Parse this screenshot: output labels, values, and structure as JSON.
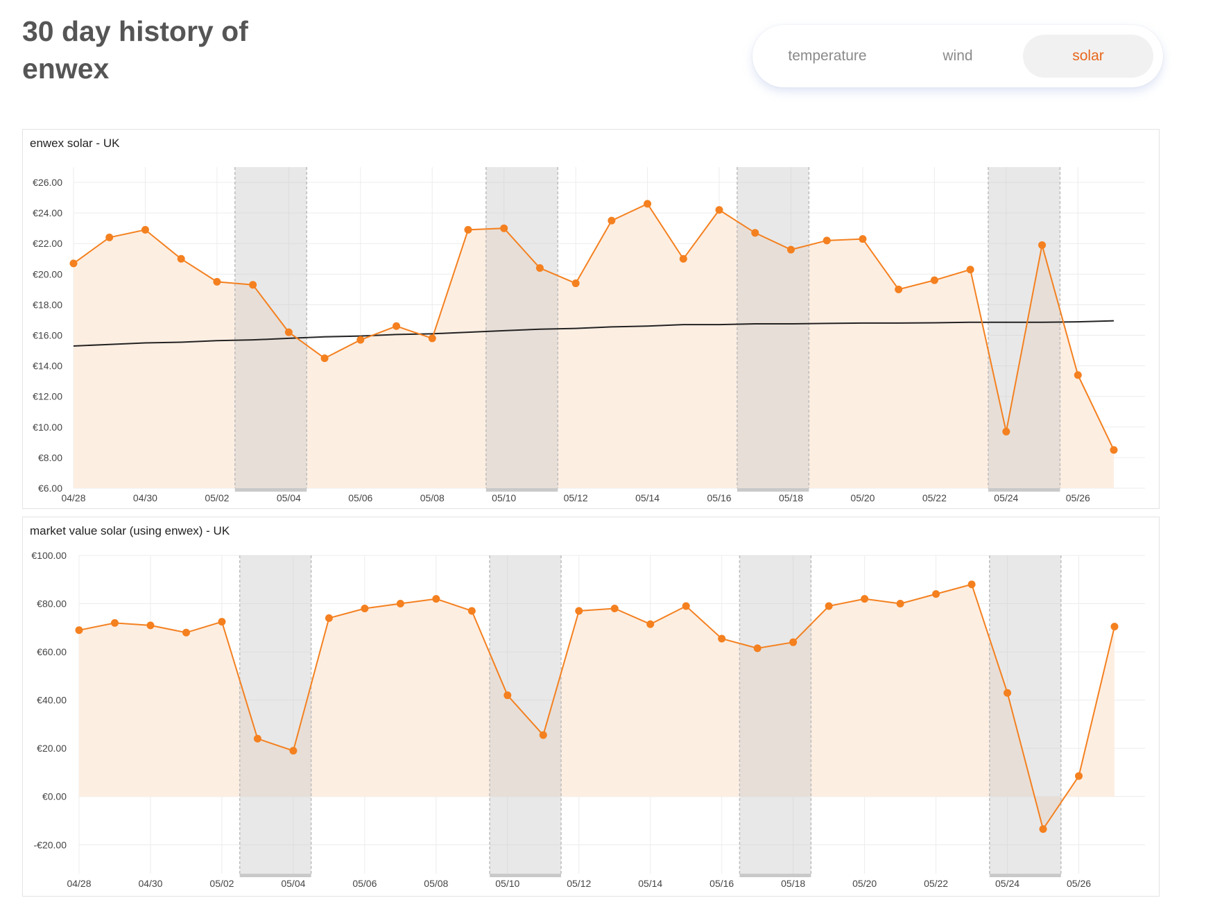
{
  "page": {
    "title": "30 day history of enwex"
  },
  "tabs": [
    {
      "label": "temperature",
      "active": false
    },
    {
      "label": "wind",
      "active": false
    },
    {
      "label": "solar",
      "active": true
    }
  ],
  "colors": {
    "accent": "#f4801f",
    "fill": "#fdeee2",
    "trend": "#222222",
    "shade": "#e6e6e6",
    "active_tab": "#e8671d"
  },
  "chart_data": [
    {
      "type": "line",
      "title": "enwex solar - UK",
      "x": [
        "04/28",
        "04/29",
        "04/30",
        "05/01",
        "05/02",
        "05/03",
        "05/04",
        "05/05",
        "05/06",
        "05/07",
        "05/08",
        "05/09",
        "05/10",
        "05/11",
        "05/12",
        "05/13",
        "05/14",
        "05/15",
        "05/16",
        "05/17",
        "05/18",
        "05/19",
        "05/20",
        "05/21",
        "05/22",
        "05/23",
        "05/24",
        "05/25",
        "05/26",
        "05/27"
      ],
      "x_tick_labels": [
        "04/28",
        "04/30",
        "05/02",
        "05/04",
        "05/06",
        "05/08",
        "05/10",
        "05/12",
        "05/14",
        "05/16",
        "05/18",
        "05/20",
        "05/22",
        "05/24",
        "05/26"
      ],
      "y_tick_labels": [
        "€6.00",
        "€8.00",
        "€10.00",
        "€12.00",
        "€14.00",
        "€16.00",
        "€18.00",
        "€20.00",
        "€22.00",
        "€24.00",
        "€26.00"
      ],
      "y_ticks": [
        6,
        8,
        10,
        12,
        14,
        16,
        18,
        20,
        22,
        24,
        26
      ],
      "ylim": [
        6,
        27
      ],
      "series": [
        {
          "name": "enwex solar",
          "values": [
            20.7,
            22.4,
            22.9,
            21.0,
            19.5,
            19.3,
            16.2,
            14.5,
            15.7,
            16.6,
            15.8,
            22.9,
            23.0,
            20.4,
            19.4,
            23.5,
            24.6,
            21.0,
            24.2,
            22.7,
            21.6,
            22.2,
            22.3,
            19.0,
            19.6,
            20.3,
            9.7,
            21.9,
            13.4,
            8.5
          ]
        },
        {
          "name": "trend",
          "values": [
            15.3,
            15.4,
            15.5,
            15.55,
            15.65,
            15.7,
            15.8,
            15.9,
            15.95,
            16.05,
            16.1,
            16.2,
            16.3,
            16.4,
            16.45,
            16.55,
            16.6,
            16.7,
            16.7,
            16.75,
            16.75,
            16.78,
            16.8,
            16.8,
            16.82,
            16.85,
            16.85,
            16.85,
            16.88,
            16.95
          ]
        }
      ],
      "weekends": [
        [
          "05/03",
          "05/04"
        ],
        [
          "05/10",
          "05/11"
        ],
        [
          "05/17",
          "05/18"
        ],
        [
          "05/24",
          "05/25"
        ]
      ]
    },
    {
      "type": "line",
      "title": "market value solar (using enwex) - UK",
      "x": [
        "04/28",
        "04/29",
        "04/30",
        "05/01",
        "05/02",
        "05/03",
        "05/04",
        "05/05",
        "05/06",
        "05/07",
        "05/08",
        "05/09",
        "05/10",
        "05/11",
        "05/12",
        "05/13",
        "05/14",
        "05/15",
        "05/16",
        "05/17",
        "05/18",
        "05/19",
        "05/20",
        "05/21",
        "05/22",
        "05/23",
        "05/24",
        "05/25",
        "05/26",
        "05/27"
      ],
      "x_tick_labels": [
        "04/28",
        "04/30",
        "05/02",
        "05/04",
        "05/06",
        "05/08",
        "05/10",
        "05/12",
        "05/14",
        "05/16",
        "05/18",
        "05/20",
        "05/22",
        "05/24",
        "05/26"
      ],
      "y_tick_labels": [
        "-€20.00",
        "€0.00",
        "€20.00",
        "€40.00",
        "€60.00",
        "€80.00",
        "€100.00"
      ],
      "y_ticks": [
        -20,
        0,
        20,
        40,
        60,
        80,
        100
      ],
      "ylim": [
        -32,
        100
      ],
      "series": [
        {
          "name": "market value solar",
          "values": [
            69,
            72,
            71,
            68,
            72.5,
            24,
            19,
            74,
            78,
            80,
            82,
            77,
            42,
            25.5,
            77,
            78,
            71.5,
            79,
            65.5,
            61.5,
            64,
            79,
            82,
            80,
            84,
            88,
            43,
            -13.5,
            8.5,
            70.5
          ]
        }
      ],
      "weekends": [
        [
          "05/03",
          "05/04"
        ],
        [
          "05/10",
          "05/11"
        ],
        [
          "05/17",
          "05/18"
        ],
        [
          "05/24",
          "05/25"
        ]
      ]
    }
  ]
}
